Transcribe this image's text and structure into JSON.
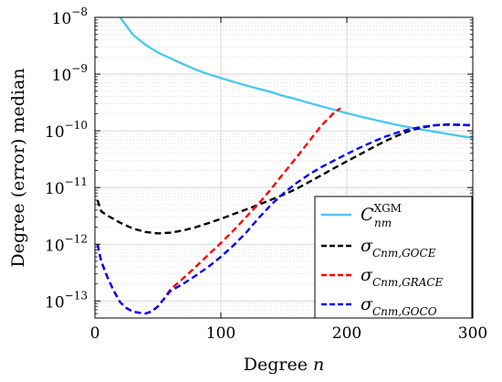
{
  "chart_data": {
    "type": "line",
    "xlabel": "Degree n",
    "ylabel": "Degree (error) median",
    "xlim": [
      0,
      300
    ],
    "ylim": [
      5e-14,
      1e-08
    ],
    "yscale": "log",
    "grid": true,
    "legend_position": "bottom-right",
    "x_ticks": [
      0,
      100,
      200,
      300
    ],
    "x_tick_labels": [
      "0",
      "100",
      "200",
      "300"
    ],
    "y_tick_exponents": [
      -13,
      -12,
      -11,
      -10,
      -9,
      -8
    ],
    "y_tick_base": "10",
    "series": [
      {
        "name": "C_nm^XGM",
        "label_main": "C",
        "label_sub": "nm",
        "label_sup": "XGM",
        "color": "#4fc8ee",
        "dash": "solid",
        "x": [
          20,
          30,
          40,
          50,
          60,
          70,
          80,
          90,
          100,
          110,
          120,
          130,
          140,
          150,
          160,
          170,
          180,
          190,
          200,
          210,
          220,
          230,
          240,
          250,
          260,
          270,
          280,
          290,
          300
        ],
        "y": [
          1e-08,
          5e-09,
          3.3e-09,
          2.4e-09,
          1.9e-09,
          1.5e-09,
          1.2e-09,
          1e-09,
          8.5e-10,
          7.3e-10,
          6.3e-10,
          5.5e-10,
          4.8e-10,
          4.1e-10,
          3.6e-10,
          3.1e-10,
          2.7e-10,
          2.35e-10,
          2.05e-10,
          1.8e-10,
          1.6e-10,
          1.42e-10,
          1.27e-10,
          1.15e-10,
          1.05e-10,
          9.6e-11,
          8.8e-11,
          8.1e-11,
          7.5e-11
        ]
      },
      {
        "name": "σ_Cnm,GOCE",
        "label_main": "σ",
        "label_sub": "Cnm,GOCE",
        "color": "#000000",
        "dash": "dashed",
        "x": [
          2,
          5,
          10,
          20,
          30,
          40,
          50,
          60,
          70,
          80,
          90,
          100,
          110,
          120,
          130,
          140,
          150,
          160,
          170,
          180,
          190,
          200,
          210,
          220,
          230,
          240,
          250,
          260,
          270,
          280,
          290,
          300
        ],
        "y": [
          6e-12,
          3.8e-12,
          3.2e-12,
          2.4e-12,
          1.9e-12,
          1.65e-12,
          1.55e-12,
          1.6e-12,
          1.75e-12,
          2e-12,
          2.35e-12,
          2.8e-12,
          3.4e-12,
          4.1e-12,
          5e-12,
          6.1e-12,
          7.5e-12,
          9.5e-12,
          1.25e-11,
          1.65e-11,
          2.2e-11,
          2.9e-11,
          3.8e-11,
          5e-11,
          6.5e-11,
          8.2e-11,
          1e-10,
          1.15e-10,
          1.25e-10,
          1.3e-10,
          1.28e-10,
          1.25e-10
        ]
      },
      {
        "name": "σ_Cnm,GRACE",
        "label_main": "σ",
        "label_sub": "Cnm,GRACE",
        "color": "#ff0000",
        "dash": "dashed",
        "x": [
          2,
          5,
          10,
          15,
          20,
          25,
          30,
          35,
          40,
          45,
          50,
          55,
          60,
          70,
          80,
          90,
          100,
          110,
          120,
          130,
          140,
          150,
          160,
          170,
          180,
          190,
          195
        ],
        "y": [
          1e-12,
          5e-13,
          2.6e-13,
          1.5e-13,
          9.5e-14,
          7.5e-14,
          6.5e-14,
          6.2e-14,
          6e-14,
          6.5e-14,
          8e-14,
          1.1e-13,
          1.6e-13,
          2.5e-13,
          4e-13,
          6.5e-13,
          1.05e-12,
          1.75e-12,
          3e-12,
          5.2e-12,
          9.5e-12,
          1.8e-11,
          3.4e-11,
          6.5e-11,
          1.25e-10,
          2.1e-10,
          2.5e-10
        ]
      },
      {
        "name": "σ_Cnm,GOCO",
        "label_main": "σ",
        "label_sub": "Cnm,GOCO",
        "color": "#0000ff",
        "dash": "dashed",
        "x": [
          2,
          5,
          10,
          15,
          20,
          25,
          30,
          35,
          40,
          45,
          50,
          55,
          60,
          70,
          80,
          90,
          100,
          110,
          120,
          130,
          140,
          150,
          160,
          170,
          180,
          190,
          200,
          210,
          220,
          230,
          240,
          250,
          260,
          270,
          280,
          290,
          300
        ],
        "y": [
          1e-12,
          5e-13,
          2.6e-13,
          1.5e-13,
          9.5e-14,
          7.5e-14,
          6.5e-14,
          6.2e-14,
          6e-14,
          6.5e-14,
          8e-14,
          1.1e-13,
          1.5e-13,
          2e-13,
          2.8e-13,
          4e-13,
          6e-13,
          9.5e-13,
          1.6e-12,
          2.9e-12,
          5e-12,
          8e-12,
          1.2e-11,
          1.7e-11,
          2.3e-11,
          3e-11,
          3.9e-11,
          5e-11,
          6.3e-11,
          7.8e-11,
          9.3e-11,
          1.07e-10,
          1.18e-10,
          1.25e-10,
          1.28e-10,
          1.27e-10,
          1.25e-10
        ]
      }
    ]
  }
}
